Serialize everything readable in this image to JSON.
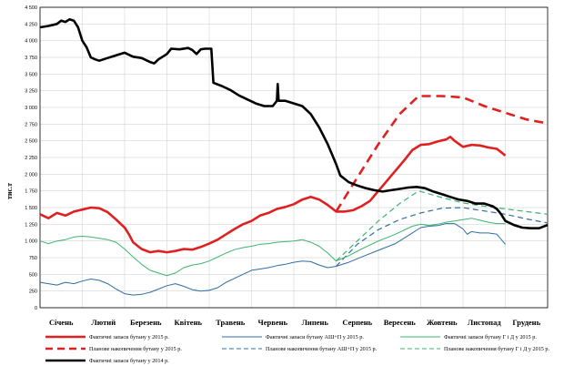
{
  "chart_data": {
    "type": "line",
    "ylabel": "тис.т",
    "ylim": [
      0,
      4500
    ],
    "yticks": [
      0,
      250,
      500,
      750,
      1000,
      1250,
      1500,
      1750,
      2000,
      2250,
      2500,
      2750,
      3000,
      3250,
      3500,
      3750,
      4000,
      4250,
      4500
    ],
    "ytick_labels": [
      "0",
      "250",
      "500",
      "750",
      "1 000",
      "1 250",
      "1 500",
      "1 750",
      "2 000",
      "2 250",
      "2 500",
      "2 750",
      "3 000",
      "3 250",
      "3 500",
      "3 750",
      "4 000",
      "4 250",
      "4 500"
    ],
    "xlim": [
      0,
      12
    ],
    "categories": [
      "Січень",
      "Лютий",
      "Березень",
      "Квітень",
      "Травень",
      "Червень",
      "Липень",
      "Серпень",
      "Вересень",
      "Жовтень",
      "Листопад",
      "Грудень"
    ],
    "grid": true,
    "legend_position": "bottom",
    "series": [
      {
        "name": "Фактичні запаси бутану у 2015 р.",
        "color": "#e02020",
        "dash": "solid",
        "width": 2.6,
        "points": [
          [
            0.0,
            1400
          ],
          [
            0.2,
            1340
          ],
          [
            0.4,
            1420
          ],
          [
            0.6,
            1380
          ],
          [
            0.8,
            1440
          ],
          [
            1.0,
            1470
          ],
          [
            1.2,
            1500
          ],
          [
            1.4,
            1490
          ],
          [
            1.6,
            1430
          ],
          [
            1.8,
            1320
          ],
          [
            2.0,
            1200
          ],
          [
            2.1,
            1100
          ],
          [
            2.2,
            980
          ],
          [
            2.4,
            880
          ],
          [
            2.6,
            830
          ],
          [
            2.8,
            850
          ],
          [
            3.0,
            830
          ],
          [
            3.2,
            850
          ],
          [
            3.4,
            880
          ],
          [
            3.6,
            870
          ],
          [
            3.8,
            910
          ],
          [
            4.0,
            960
          ],
          [
            4.2,
            1020
          ],
          [
            4.4,
            1100
          ],
          [
            4.6,
            1180
          ],
          [
            4.8,
            1250
          ],
          [
            5.0,
            1300
          ],
          [
            5.2,
            1380
          ],
          [
            5.4,
            1420
          ],
          [
            5.6,
            1480
          ],
          [
            5.8,
            1510
          ],
          [
            6.0,
            1550
          ],
          [
            6.2,
            1620
          ],
          [
            6.4,
            1660
          ],
          [
            6.6,
            1620
          ],
          [
            6.8,
            1540
          ],
          [
            7.0,
            1440
          ],
          [
            7.2,
            1440
          ],
          [
            7.4,
            1460
          ],
          [
            7.6,
            1520
          ],
          [
            7.8,
            1600
          ],
          [
            8.0,
            1750
          ],
          [
            8.2,
            1900
          ],
          [
            8.4,
            2050
          ],
          [
            8.6,
            2200
          ],
          [
            8.8,
            2360
          ],
          [
            9.0,
            2440
          ],
          [
            9.2,
            2450
          ],
          [
            9.4,
            2490
          ],
          [
            9.6,
            2520
          ],
          [
            9.7,
            2560
          ],
          [
            9.8,
            2500
          ],
          [
            10.0,
            2410
          ],
          [
            10.2,
            2440
          ],
          [
            10.4,
            2430
          ],
          [
            10.6,
            2400
          ],
          [
            10.8,
            2380
          ],
          [
            11.0,
            2280
          ]
        ]
      },
      {
        "name": "Планове накопичення бутану у 2015 р.",
        "color": "#e02020",
        "dash": "dashed",
        "width": 2.6,
        "points": [
          [
            7.0,
            1440
          ],
          [
            7.5,
            1950
          ],
          [
            8.0,
            2450
          ],
          [
            8.5,
            2900
          ],
          [
            8.95,
            3170
          ],
          [
            9.5,
            3170
          ],
          [
            10.0,
            3150
          ],
          [
            10.5,
            3020
          ],
          [
            11.0,
            2920
          ],
          [
            11.5,
            2820
          ],
          [
            12.0,
            2760
          ]
        ]
      },
      {
        "name": "Фактичні запаси бутану АШ+П у 2015 р.",
        "color": "#2e6da4",
        "dash": "solid",
        "width": 1.0,
        "points": [
          [
            0.0,
            380
          ],
          [
            0.2,
            360
          ],
          [
            0.4,
            340
          ],
          [
            0.6,
            380
          ],
          [
            0.8,
            360
          ],
          [
            1.0,
            400
          ],
          [
            1.2,
            430
          ],
          [
            1.4,
            410
          ],
          [
            1.6,
            360
          ],
          [
            1.8,
            280
          ],
          [
            2.0,
            210
          ],
          [
            2.2,
            190
          ],
          [
            2.4,
            200
          ],
          [
            2.6,
            230
          ],
          [
            2.8,
            280
          ],
          [
            3.0,
            330
          ],
          [
            3.2,
            360
          ],
          [
            3.4,
            320
          ],
          [
            3.6,
            270
          ],
          [
            3.8,
            250
          ],
          [
            4.0,
            260
          ],
          [
            4.2,
            300
          ],
          [
            4.4,
            380
          ],
          [
            4.6,
            440
          ],
          [
            4.8,
            500
          ],
          [
            5.0,
            560
          ],
          [
            5.2,
            580
          ],
          [
            5.4,
            600
          ],
          [
            5.6,
            630
          ],
          [
            5.8,
            650
          ],
          [
            6.0,
            680
          ],
          [
            6.2,
            700
          ],
          [
            6.4,
            690
          ],
          [
            6.6,
            640
          ],
          [
            6.8,
            600
          ],
          [
            7.0,
            620
          ],
          [
            7.3,
            680
          ],
          [
            7.6,
            760
          ],
          [
            8.0,
            860
          ],
          [
            8.4,
            960
          ],
          [
            8.8,
            1120
          ],
          [
            9.0,
            1200
          ],
          [
            9.2,
            1220
          ],
          [
            9.4,
            1230
          ],
          [
            9.6,
            1260
          ],
          [
            9.8,
            1260
          ],
          [
            10.0,
            1180
          ],
          [
            10.1,
            1100
          ],
          [
            10.2,
            1140
          ],
          [
            10.4,
            1120
          ],
          [
            10.6,
            1120
          ],
          [
            10.8,
            1100
          ],
          [
            11.0,
            950
          ]
        ]
      },
      {
        "name": "Планове накопичення бутану АШ+П у 2015 р.",
        "color": "#2e6da4",
        "dash": "dashed",
        "width": 1.2,
        "points": [
          [
            7.0,
            620
          ],
          [
            7.5,
            950
          ],
          [
            8.0,
            1170
          ],
          [
            8.5,
            1320
          ],
          [
            9.0,
            1420
          ],
          [
            9.5,
            1490
          ],
          [
            10.0,
            1500
          ],
          [
            10.5,
            1450
          ],
          [
            11.0,
            1400
          ],
          [
            11.5,
            1330
          ],
          [
            12.0,
            1270
          ]
        ]
      },
      {
        "name": "Фактичні запаси бутану Г і Д у 2015 р.",
        "color": "#3cb371",
        "dash": "solid",
        "width": 1.0,
        "points": [
          [
            0.0,
            1000
          ],
          [
            0.2,
            960
          ],
          [
            0.4,
            1000
          ],
          [
            0.6,
            1020
          ],
          [
            0.8,
            1060
          ],
          [
            1.0,
            1070
          ],
          [
            1.2,
            1060
          ],
          [
            1.4,
            1040
          ],
          [
            1.6,
            1020
          ],
          [
            1.8,
            980
          ],
          [
            2.0,
            880
          ],
          [
            2.2,
            760
          ],
          [
            2.4,
            650
          ],
          [
            2.6,
            560
          ],
          [
            2.8,
            520
          ],
          [
            3.0,
            480
          ],
          [
            3.2,
            520
          ],
          [
            3.4,
            600
          ],
          [
            3.6,
            640
          ],
          [
            3.8,
            660
          ],
          [
            4.0,
            700
          ],
          [
            4.2,
            760
          ],
          [
            4.4,
            820
          ],
          [
            4.6,
            870
          ],
          [
            4.8,
            900
          ],
          [
            5.0,
            920
          ],
          [
            5.2,
            950
          ],
          [
            5.4,
            960
          ],
          [
            5.6,
            980
          ],
          [
            5.8,
            990
          ],
          [
            6.0,
            1000
          ],
          [
            6.2,
            1020
          ],
          [
            6.4,
            980
          ],
          [
            6.6,
            920
          ],
          [
            6.8,
            820
          ],
          [
            7.0,
            700
          ],
          [
            7.3,
            780
          ],
          [
            7.6,
            880
          ],
          [
            8.0,
            1000
          ],
          [
            8.4,
            1100
          ],
          [
            8.8,
            1220
          ],
          [
            9.0,
            1250
          ],
          [
            9.2,
            1230
          ],
          [
            9.4,
            1250
          ],
          [
            9.6,
            1280
          ],
          [
            9.8,
            1300
          ],
          [
            10.0,
            1320
          ],
          [
            10.2,
            1340
          ],
          [
            10.4,
            1310
          ],
          [
            10.6,
            1280
          ],
          [
            10.8,
            1260
          ],
          [
            11.0,
            1260
          ]
        ]
      },
      {
        "name": "Планове накопичення бутану Г і Д у 2015 р.",
        "color": "#3cb371",
        "dash": "dashed",
        "width": 1.2,
        "points": [
          [
            7.0,
            700
          ],
          [
            7.5,
            1000
          ],
          [
            8.0,
            1300
          ],
          [
            8.5,
            1560
          ],
          [
            8.95,
            1750
          ],
          [
            9.5,
            1650
          ],
          [
            10.0,
            1570
          ],
          [
            10.5,
            1520
          ],
          [
            11.0,
            1480
          ],
          [
            11.5,
            1440
          ],
          [
            12.0,
            1400
          ]
        ]
      },
      {
        "name": "Фактичні запаси бутану у 2014 р.",
        "color": "#000000",
        "dash": "solid",
        "width": 2.6,
        "points": [
          [
            0.0,
            4200
          ],
          [
            0.2,
            4220
          ],
          [
            0.4,
            4250
          ],
          [
            0.5,
            4300
          ],
          [
            0.6,
            4280
          ],
          [
            0.7,
            4320
          ],
          [
            0.8,
            4300
          ],
          [
            0.9,
            4200
          ],
          [
            1.0,
            4000
          ],
          [
            1.1,
            3900
          ],
          [
            1.2,
            3750
          ],
          [
            1.3,
            3720
          ],
          [
            1.4,
            3700
          ],
          [
            1.6,
            3740
          ],
          [
            1.8,
            3780
          ],
          [
            2.0,
            3820
          ],
          [
            2.2,
            3760
          ],
          [
            2.4,
            3740
          ],
          [
            2.6,
            3680
          ],
          [
            2.7,
            3660
          ],
          [
            2.8,
            3720
          ],
          [
            3.0,
            3800
          ],
          [
            3.1,
            3880
          ],
          [
            3.3,
            3870
          ],
          [
            3.5,
            3890
          ],
          [
            3.6,
            3860
          ],
          [
            3.7,
            3800
          ],
          [
            3.8,
            3870
          ],
          [
            3.9,
            3880
          ],
          [
            4.05,
            3880
          ],
          [
            4.1,
            3370
          ],
          [
            4.3,
            3320
          ],
          [
            4.5,
            3260
          ],
          [
            4.7,
            3180
          ],
          [
            4.9,
            3120
          ],
          [
            5.1,
            3060
          ],
          [
            5.3,
            3020
          ],
          [
            5.5,
            3020
          ],
          [
            5.6,
            3100
          ],
          [
            5.62,
            3350
          ],
          [
            5.64,
            3100
          ],
          [
            5.8,
            3100
          ],
          [
            6.0,
            3060
          ],
          [
            6.2,
            3020
          ],
          [
            6.4,
            2900
          ],
          [
            6.6,
            2700
          ],
          [
            6.8,
            2450
          ],
          [
            7.0,
            2150
          ],
          [
            7.1,
            1980
          ],
          [
            7.3,
            1880
          ],
          [
            7.5,
            1830
          ],
          [
            7.7,
            1790
          ],
          [
            7.9,
            1760
          ],
          [
            8.1,
            1740
          ],
          [
            8.3,
            1760
          ],
          [
            8.5,
            1780
          ],
          [
            8.7,
            1800
          ],
          [
            8.9,
            1810
          ],
          [
            9.1,
            1790
          ],
          [
            9.3,
            1740
          ],
          [
            9.5,
            1700
          ],
          [
            9.7,
            1660
          ],
          [
            9.9,
            1620
          ],
          [
            10.1,
            1600
          ],
          [
            10.3,
            1560
          ],
          [
            10.5,
            1560
          ],
          [
            10.7,
            1520
          ],
          [
            10.8,
            1480
          ],
          [
            10.9,
            1400
          ],
          [
            11.0,
            1300
          ],
          [
            11.2,
            1240
          ],
          [
            11.4,
            1200
          ],
          [
            11.6,
            1190
          ],
          [
            11.8,
            1190
          ],
          [
            12.0,
            1240
          ]
        ]
      }
    ]
  }
}
